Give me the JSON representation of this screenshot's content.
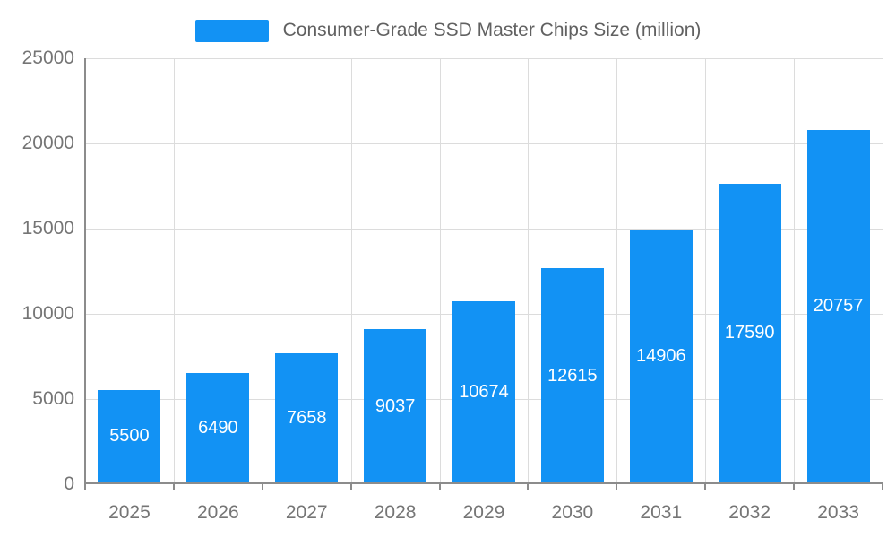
{
  "chart_data": {
    "type": "bar",
    "title": "Consumer-Grade SSD Master Chips Size (million)",
    "categories": [
      "2025",
      "2026",
      "2027",
      "2028",
      "2029",
      "2030",
      "2031",
      "2032",
      "2033"
    ],
    "values": [
      5500,
      6490,
      7658,
      9037,
      10674,
      12615,
      14906,
      17590,
      20757
    ],
    "xlabel": "",
    "ylabel": "",
    "ylim": [
      0,
      25000
    ],
    "yticks": [
      0,
      5000,
      10000,
      15000,
      20000,
      25000
    ],
    "grid": true,
    "legend_position": "top",
    "bar_color": "#1292F4",
    "bar_label_color": "#ffffff",
    "axis_line_color": "#8c8c8c",
    "grid_color": "#dcdcdc",
    "tick_label_color": "#757575",
    "title_color": "#616161"
  }
}
